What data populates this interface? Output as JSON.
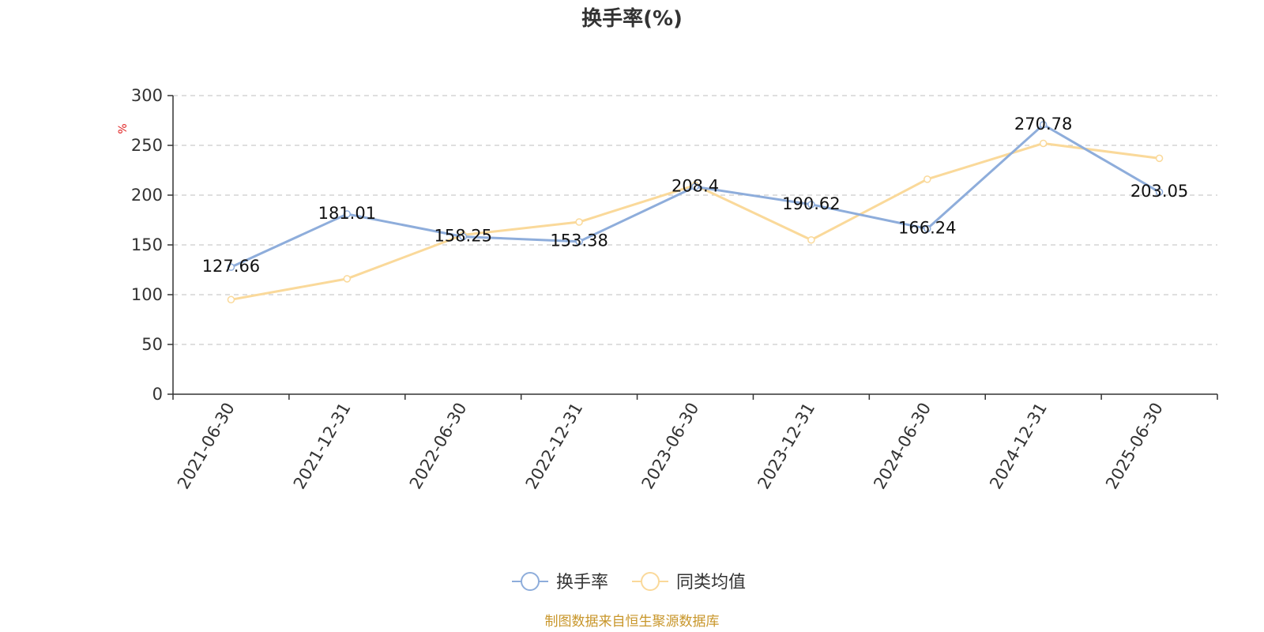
{
  "chart_data": {
    "type": "line",
    "title": "换手率(%)",
    "unit_label": "%",
    "categories": [
      "2021-06-30",
      "2021-12-31",
      "2022-06-30",
      "2022-12-31",
      "2023-06-30",
      "2023-12-31",
      "2024-06-30",
      "2024-12-31",
      "2025-06-30"
    ],
    "y_ticks": [
      "0",
      "50",
      "100",
      "150",
      "200",
      "250",
      "300"
    ],
    "ylim": [
      0,
      300
    ],
    "grid": true,
    "legend_position": "bottom-center",
    "series": [
      {
        "name": "换手率",
        "color": "#8eaddb",
        "values": [
          127.66,
          181.01,
          158.25,
          153.38,
          208.4,
          190.62,
          166.24,
          270.78,
          203.05
        ],
        "labels": [
          "127.66",
          "181.01",
          "158.25",
          "153.38",
          "208.4",
          "190.62",
          "166.24",
          "270.78",
          "203.05"
        ]
      },
      {
        "name": "同类均值",
        "color": "#fad99a",
        "values": [
          95,
          116,
          160,
          173,
          210,
          155,
          216,
          252,
          237
        ]
      }
    ]
  },
  "source": {
    "text": "制图数据来自恒生聚源数据库",
    "color": "#c8962a"
  },
  "unit_color": "#e02020"
}
